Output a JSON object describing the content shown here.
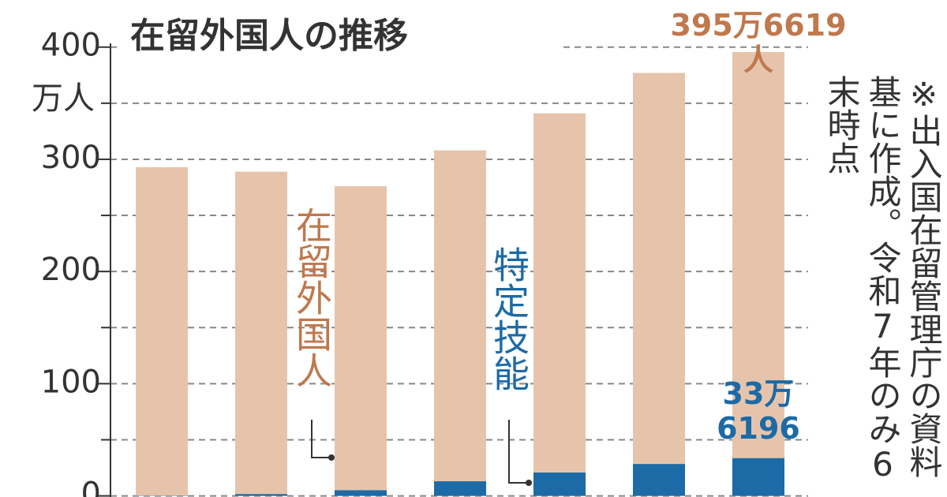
{
  "chart_data": {
    "type": "bar",
    "title": "在留外国人の推移",
    "y_axis_label": "万人",
    "categories": [
      null,
      null,
      null,
      null,
      null,
      null,
      null
    ],
    "series": [
      {
        "name": "在留外国人",
        "color": "#e6c4ab",
        "label_color": "#c0784d",
        "values": [
          293,
          289,
          276,
          308,
          341,
          377,
          395.6619
        ],
        "value_labels": [
          null,
          null,
          null,
          null,
          null,
          null,
          "395万6619人"
        ]
      },
      {
        "name": "特定技能",
        "color": "#1c6aa6",
        "label_color": "#1c6aa6",
        "values": [
          0.2,
          1.6,
          5,
          13,
          20.8,
          28.4,
          33.6196
        ],
        "value_labels": [
          null,
          null,
          null,
          null,
          null,
          null,
          "33万\n6196"
        ]
      }
    ],
    "overlap": true,
    "ylim": [
      -1,
      442
    ],
    "yticks": [
      0,
      100,
      200,
      300,
      400
    ],
    "minor_yticks": [
      50,
      150,
      250,
      350
    ],
    "grid": true,
    "note": "※出入国在留管理庁の資料基に作成。令和7年のみ6末時点"
  }
}
